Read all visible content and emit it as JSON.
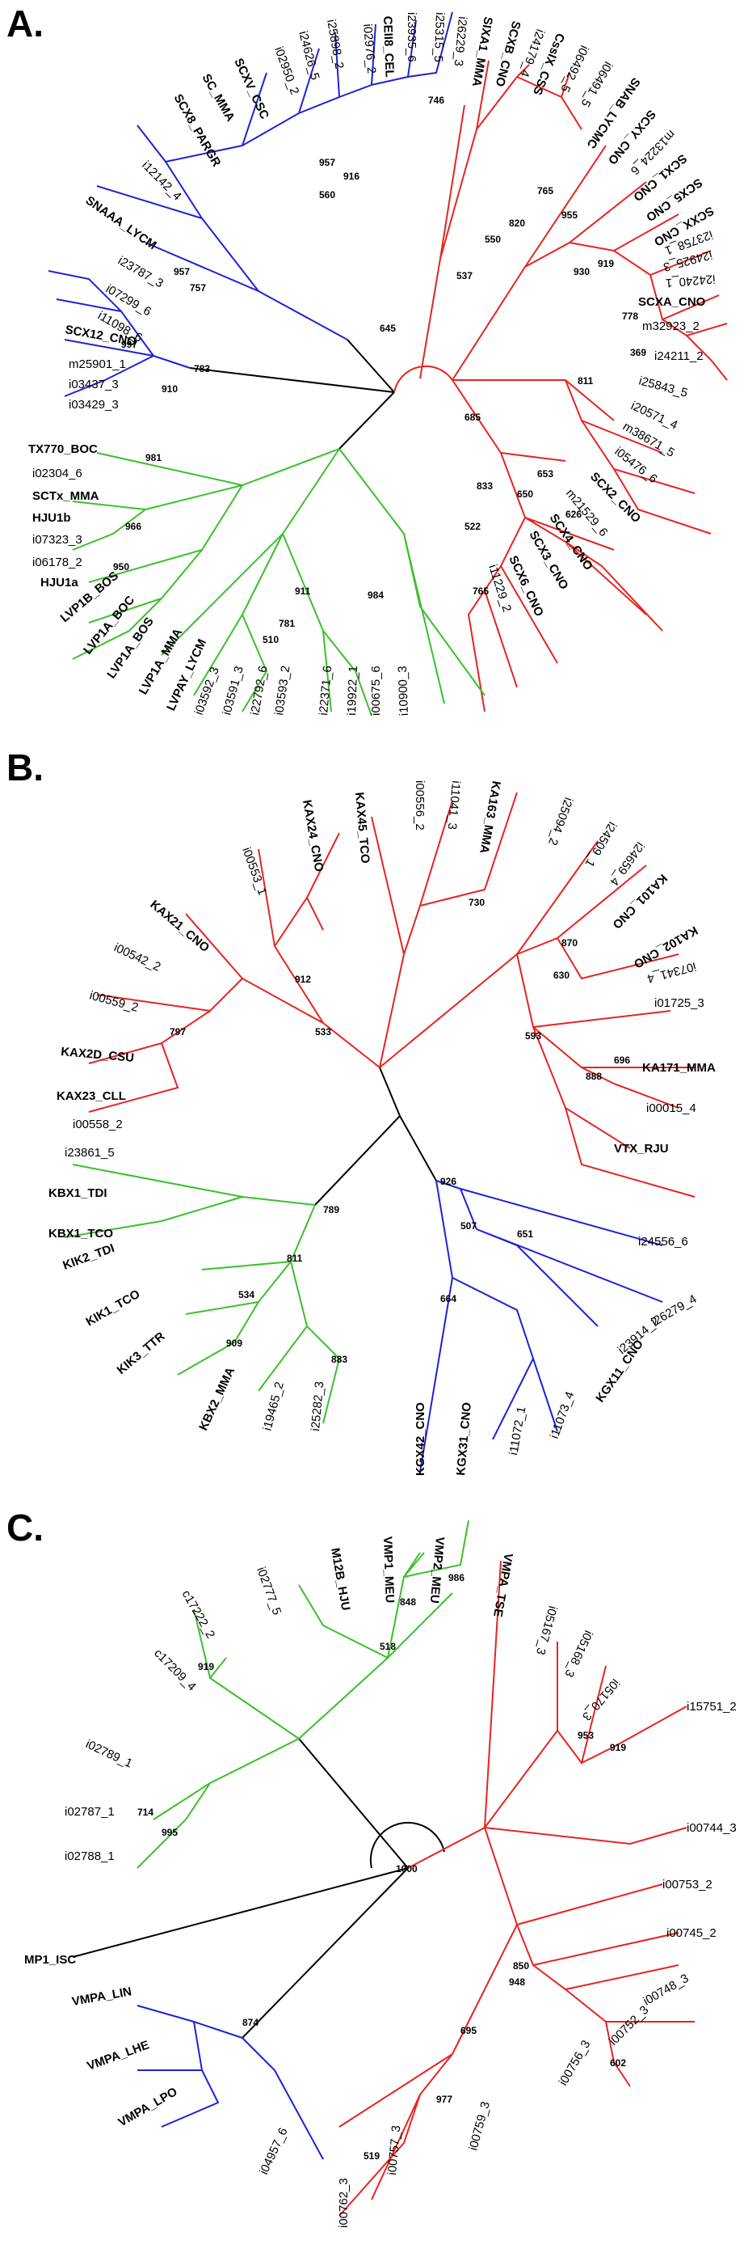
{
  "colors": {
    "red": "#e8231f",
    "blue": "#1c22d8",
    "green": "#3cbf2c",
    "black": "#000000"
  },
  "panels": [
    {
      "letter": "A.",
      "blue_leaves": [
        "SCX12_CNO",
        "i11098_6",
        "i07299_6",
        "i23787_3",
        "SNAAA_LYCM",
        "i12142_4",
        "SCX8_PARGR",
        "SC_MMA",
        "SCXV_CSC",
        "i02950_2",
        "i24626_5",
        "i25898_2",
        "i02976_2",
        "CEII8_CEL",
        "i23935_6",
        "i25315_5",
        "m25901_1",
        "i03437_3",
        "i03429_3"
      ],
      "red_leaves": [
        "i26229_3",
        "SIXA1_MMA",
        "SCXB_CNO",
        "i24179_4",
        "CssIX_CSS",
        "i06492_5",
        "i06491_5",
        "SNAB_LYCMC",
        "SCXY_CNO",
        "m13224_6",
        "SCX1_CNO",
        "SCX5_CNO",
        "SCXX_CNO",
        "i23758_1",
        "i24925_3",
        "i24240_1",
        "SCXA_CNO",
        "m32923_2",
        "i24211_2",
        "i25843_5",
        "i20571_4",
        "m38671_5",
        "i05476_6",
        "SCX2_CNO",
        "m21529_6",
        "SCX4_CNO",
        "SCX3_CNO",
        "SCX6_CNO",
        "i11229_2"
      ],
      "green_leaves": [
        "TX770_BOC",
        "i02304_6",
        "SCTx_MMA",
        "HJU1b",
        "i07323_3",
        "i06178_2",
        "HJU1a",
        "LVP1B_BOS",
        "LVP1A_BOC",
        "LVP1A_BOS",
        "LVP1A_MMA",
        "LVPAY_LYCM",
        "i03592_3",
        "i03591_3",
        "i22792_6",
        "i03593_2",
        "i22371_6",
        "i19922_1",
        "i00675_6",
        "i10900_3"
      ],
      "bootstrap": [
        "957",
        "560",
        "916",
        "746",
        "957",
        "757",
        "645",
        "997",
        "783",
        "537",
        "550",
        "820",
        "765",
        "955",
        "910",
        "930",
        "919",
        "778",
        "369",
        "811",
        "685",
        "653",
        "650",
        "833",
        "626",
        "522",
        "765",
        "981",
        "966",
        "950",
        "911",
        "781",
        "510",
        "984"
      ]
    },
    {
      "letter": "B.",
      "red_leaves": [
        "i00553_1",
        "KAX24_CNO",
        "KAX45_TCO",
        "i00556_2",
        "i11041_3",
        "KA163_MMA",
        "i25094_2",
        "i24509_1",
        "KAX21_CNO",
        "i00542_2",
        "i00559_2",
        "KAX2D_CSU",
        "KAX23_CLL",
        "i00558_2",
        "i24659_4",
        "KA101_CNO",
        "KA102_CNO",
        "i07341_4",
        "i01725_3",
        "KA171_MMA",
        "i00015_4",
        "VTX_RJU"
      ],
      "green_leaves": [
        "i23861_5",
        "KBX1_TDI",
        "KBX1_TCO",
        "KIK2_TDI",
        "KIK1_TCO",
        "KIK3_TTR",
        "KBX2_MMA",
        "i19465_2",
        "i25282_3"
      ],
      "blue_leaves": [
        "i24556_6",
        "i26279_4",
        "i23914_2",
        "KGX11_CNO",
        "i11073_4",
        "i11072_1",
        "KGX31_CNO",
        "KGX42_CNO"
      ],
      "bootstrap": [
        "912",
        "797",
        "533",
        "730",
        "870",
        "630",
        "593",
        "696",
        "888",
        "789",
        "811",
        "534",
        "909",
        "883",
        "926",
        "507",
        "651",
        "664"
      ]
    },
    {
      "letter": "C.",
      "green_leaves": [
        "i02777_5",
        "M12B_HJU",
        "VMP1_MEU",
        "VMP2_MEU",
        "c17222_2",
        "c17209_4",
        "i02789_1",
        "i02787_1",
        "i02788_1"
      ],
      "red_leaves": [
        "VMPA_TSE",
        "i05167_3",
        "i05168_3",
        "i05170_3",
        "i15751_2",
        "i00744_3",
        "i00753_2",
        "i00745_2",
        "i00748_3",
        "i00752_3",
        "i00756_3",
        "i00759_3",
        "i00757_3",
        "i00762_3"
      ],
      "blue_leaves": [
        "VMPA_LIN",
        "VMPA_LHE",
        "VMPA_LPO",
        "i04957_6"
      ],
      "black_leaves": [
        "MP1_ISC"
      ],
      "bootstrap": [
        "986",
        "848",
        "518",
        "919",
        "714",
        "995",
        "1000",
        "953",
        "919",
        "850",
        "948",
        "695",
        "602",
        "977",
        "519",
        "874"
      ]
    }
  ]
}
